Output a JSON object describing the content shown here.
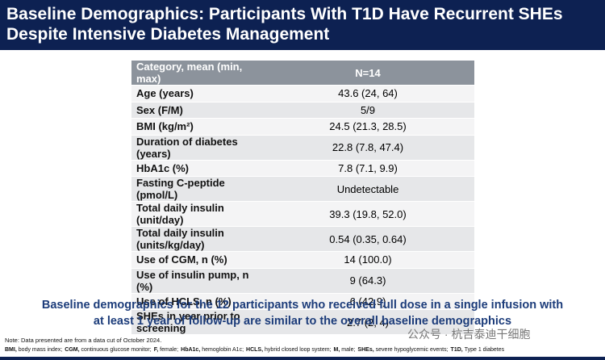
{
  "header": {
    "title_lines": [
      "Baseline Demographics: Participants With T1D Have Recurrent SHEs",
      "Despite Intensive Diabetes Management"
    ]
  },
  "table": {
    "columns": [
      "Category, mean (min, max)",
      "N=14"
    ],
    "rows": [
      [
        "Age (years)",
        "43.6 (24, 64)"
      ],
      [
        "Sex (F/M)",
        "5/9"
      ],
      [
        "BMI (kg/m²)",
        "24.5 (21.3, 28.5)"
      ],
      [
        "Duration of diabetes (years)",
        "22.8 (7.8, 47.4)"
      ],
      [
        "HbA1c (%)",
        "7.8 (7.1, 9.9)"
      ],
      [
        "Fasting C-peptide (pmol/L)",
        "Undetectable"
      ],
      [
        "Total daily insulin (unit/day)",
        "39.3 (19.8, 52.0)"
      ],
      [
        "Total daily insulin (units/kg/day)",
        "0.54 (0.35, 0.64)"
      ],
      [
        "Use of CGM, n (%)",
        "14 (100.0)"
      ],
      [
        "Use of insulin pump, n (%)",
        "9 (64.3)"
      ],
      [
        "Use of HCLS, n (%)",
        "6 (42.9)"
      ],
      [
        "SHEs in year prior to screening",
        "2.7 (2, 4)"
      ]
    ]
  },
  "summary": {
    "lines": [
      "Baseline demographics for the 12 participants who received full dose in a single infusion with",
      "at least 1 year of follow-up are similar to the overall baseline demographics"
    ]
  },
  "watermark": "公众号 · 杭吉泰迪干细胞",
  "notes": {
    "note": "Note: Data presented are from a data cut of October 2024.",
    "abbreviations": [
      {
        "term": "BMI,",
        "definition": "body mass index;"
      },
      {
        "term": "CGM,",
        "definition": "continuous glucose monitor;"
      },
      {
        "term": "F,",
        "definition": "female;"
      },
      {
        "term": "HbA1c,",
        "definition": "hemoglobin A1c;"
      },
      {
        "term": "HCLS,",
        "definition": "hybrid closed loop system;"
      },
      {
        "term": "M,",
        "definition": "male;"
      },
      {
        "term": "SHEs,",
        "definition": "severe hypoglycemic events;"
      },
      {
        "term": "T1D,",
        "definition": "Type 1 diabetes"
      }
    ]
  }
}
